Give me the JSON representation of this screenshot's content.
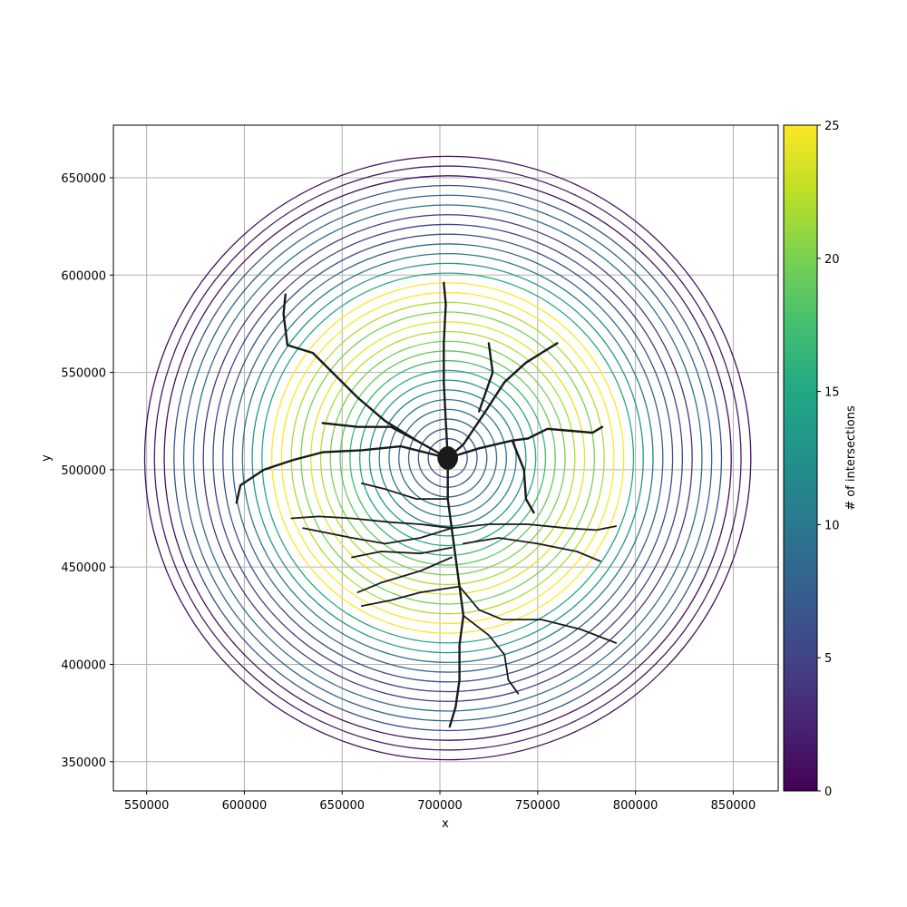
{
  "chart_data": {
    "type": "contour",
    "title": "",
    "xlabel": "x",
    "ylabel": "y",
    "xlim": [
      533000,
      873000
    ],
    "ylim": [
      335000,
      677000
    ],
    "xticks": [
      550000,
      600000,
      650000,
      700000,
      750000,
      800000,
      850000
    ],
    "yticks": [
      350000,
      400000,
      450000,
      500000,
      550000,
      600000,
      650000
    ],
    "x_tick_labels": [
      "550000",
      "600000",
      "650000",
      "700000",
      "750000",
      "800000",
      "850000"
    ],
    "y_tick_labels": [
      "350000",
      "400000",
      "450000",
      "500000",
      "550000",
      "600000",
      "650000"
    ],
    "grid": true,
    "center": [
      704000,
      506000
    ],
    "ring_step": 5000,
    "rings": [
      {
        "radius": 5000,
        "intersections": 3
      },
      {
        "radius": 10000,
        "intersections": 6
      },
      {
        "radius": 15000,
        "intersections": 7
      },
      {
        "radius": 20000,
        "intersections": 8
      },
      {
        "radius": 25000,
        "intersections": 9
      },
      {
        "radius": 30000,
        "intersections": 10
      },
      {
        "radius": 35000,
        "intersections": 11
      },
      {
        "radius": 40000,
        "intersections": 13
      },
      {
        "radius": 45000,
        "intersections": 15
      },
      {
        "radius": 50000,
        "intersections": 17
      },
      {
        "radius": 55000,
        "intersections": 19
      },
      {
        "radius": 60000,
        "intersections": 20
      },
      {
        "radius": 65000,
        "intersections": 22
      },
      {
        "radius": 70000,
        "intersections": 24
      },
      {
        "radius": 75000,
        "intersections": 20
      },
      {
        "radius": 80000,
        "intersections": 22
      },
      {
        "radius": 85000,
        "intersections": 25
      },
      {
        "radius": 90000,
        "intersections": 25
      },
      {
        "radius": 95000,
        "intersections": 15
      },
      {
        "radius": 100000,
        "intersections": 13
      },
      {
        "radius": 105000,
        "intersections": 10
      },
      {
        "radius": 110000,
        "intersections": 8
      },
      {
        "radius": 115000,
        "intersections": 6
      },
      {
        "radius": 120000,
        "intersections": 5
      },
      {
        "radius": 125000,
        "intersections": 4
      },
      {
        "radius": 130000,
        "intersections": 9
      },
      {
        "radius": 135000,
        "intersections": 8
      },
      {
        "radius": 140000,
        "intersections": 6
      },
      {
        "radius": 145000,
        "intersections": 1
      },
      {
        "radius": 150000,
        "intersections": 2
      },
      {
        "radius": 155000,
        "intersections": 1
      }
    ],
    "neuron": {
      "color": "#1a1a1a",
      "soma": [
        704000,
        506000
      ],
      "branches": [
        [
          [
            704000,
            506000
          ],
          [
            703000,
            525000
          ],
          [
            702000,
            545000
          ],
          [
            702000,
            565000
          ],
          [
            703000,
            585000
          ],
          [
            702000,
            596000
          ]
        ],
        [
          [
            704000,
            506000
          ],
          [
            712000,
            513000
          ],
          [
            722000,
            528000
          ],
          [
            733000,
            545000
          ],
          [
            744000,
            555000
          ],
          [
            752000,
            560000
          ],
          [
            760000,
            565000
          ]
        ],
        [
          [
            720000,
            530000
          ],
          [
            727000,
            550000
          ],
          [
            725000,
            565000
          ]
        ],
        [
          [
            704000,
            506000
          ],
          [
            720000,
            511000
          ],
          [
            737000,
            515000
          ],
          [
            745000,
            516000
          ],
          [
            755000,
            521000
          ],
          [
            767000,
            520000
          ],
          [
            778000,
            519000
          ],
          [
            783000,
            522000
          ]
        ],
        [
          [
            737000,
            515000
          ],
          [
            743000,
            500000
          ],
          [
            744000,
            485000
          ],
          [
            748000,
            478000
          ]
        ],
        [
          [
            704000,
            506000
          ],
          [
            688000,
            515000
          ],
          [
            672000,
            525000
          ],
          [
            658000,
            537000
          ],
          [
            645000,
            550000
          ],
          [
            635000,
            560000
          ],
          [
            622000,
            564000
          ]
        ],
        [
          [
            688000,
            515000
          ],
          [
            675000,
            522000
          ],
          [
            658000,
            522000
          ],
          [
            640000,
            524000
          ]
        ],
        [
          [
            704000,
            506000
          ],
          [
            680000,
            512000
          ],
          [
            660000,
            510000
          ],
          [
            640000,
            509000
          ],
          [
            625000,
            505000
          ],
          [
            610000,
            500000
          ],
          [
            598000,
            492000
          ],
          [
            596000,
            483000
          ]
        ],
        [
          [
            622000,
            564000
          ],
          [
            620000,
            580000
          ],
          [
            621000,
            590000
          ]
        ],
        [
          [
            704000,
            506000
          ],
          [
            704000,
            485000
          ],
          [
            706000,
            470000
          ],
          [
            708000,
            455000
          ],
          [
            710000,
            440000
          ],
          [
            712000,
            425000
          ],
          [
            710000,
            410000
          ],
          [
            710000,
            392000
          ],
          [
            708000,
            378000
          ],
          [
            705000,
            368000
          ]
        ],
        [
          [
            706000,
            470000
          ],
          [
            690000,
            472000
          ],
          [
            675000,
            473000
          ],
          [
            655000,
            475000
          ],
          [
            638000,
            476000
          ],
          [
            624000,
            475000
          ]
        ],
        [
          [
            706000,
            470000
          ],
          [
            725000,
            472000
          ],
          [
            745000,
            472000
          ],
          [
            765000,
            470000
          ],
          [
            780000,
            469000
          ],
          [
            790000,
            471000
          ]
        ],
        [
          [
            706000,
            470000
          ],
          [
            690000,
            465000
          ],
          [
            672000,
            462000
          ],
          [
            655000,
            465000
          ],
          [
            630000,
            470000
          ]
        ],
        [
          [
            712000,
            462000
          ],
          [
            730000,
            465000
          ],
          [
            750000,
            462000
          ],
          [
            770000,
            458000
          ],
          [
            782000,
            453000
          ]
        ],
        [
          [
            706000,
            460000
          ],
          [
            690000,
            457000
          ],
          [
            670000,
            458000
          ],
          [
            655000,
            455000
          ]
        ],
        [
          [
            706000,
            455000
          ],
          [
            690000,
            448000
          ],
          [
            670000,
            442000
          ],
          [
            658000,
            437000
          ]
        ],
        [
          [
            710000,
            440000
          ],
          [
            690000,
            437000
          ],
          [
            675000,
            433000
          ],
          [
            660000,
            430000
          ]
        ],
        [
          [
            710000,
            440000
          ],
          [
            720000,
            428000
          ],
          [
            732000,
            423000
          ],
          [
            752000,
            423000
          ],
          [
            772000,
            418000
          ],
          [
            790000,
            411000
          ]
        ],
        [
          [
            712000,
            425000
          ],
          [
            725000,
            415000
          ],
          [
            733000,
            405000
          ],
          [
            735000,
            392000
          ],
          [
            740000,
            385000
          ]
        ],
        [
          [
            704000,
            485000
          ],
          [
            688000,
            485000
          ],
          [
            672000,
            490000
          ],
          [
            660000,
            493000
          ]
        ]
      ]
    },
    "colorbar": {
      "label": "# of intersections",
      "min": 0,
      "max": 25,
      "ticks": [
        0,
        5,
        10,
        15,
        20,
        25
      ],
      "tick_labels": [
        "0",
        "5",
        "10",
        "15",
        "20",
        "25"
      ],
      "colormap": "viridis",
      "colormap_stops": [
        "#440154",
        "#482475",
        "#414487",
        "#355f8d",
        "#2a788e",
        "#21918c",
        "#22a884",
        "#44bf70",
        "#7ad151",
        "#bddf26",
        "#fde725"
      ]
    }
  }
}
